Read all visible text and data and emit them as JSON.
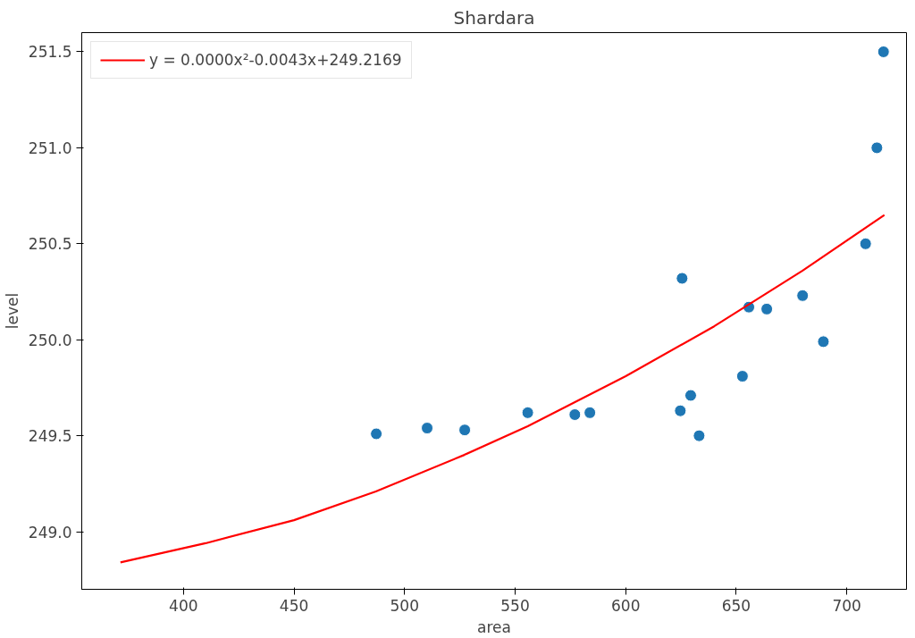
{
  "chart_data": {
    "type": "scatter",
    "title": "Shardara",
    "xlabel": "area",
    "ylabel": "level",
    "xlim": [
      354,
      727
    ],
    "ylim": [
      248.7,
      251.6
    ],
    "xticks": [
      400,
      450,
      500,
      550,
      600,
      650,
      700
    ],
    "yticks": [
      {
        "value": 249.0,
        "label": "249.0"
      },
      {
        "value": 249.5,
        "label": "249.5"
      },
      {
        "value": 250.0,
        "label": "250.0"
      },
      {
        "value": 250.5,
        "label": "250.5"
      },
      {
        "value": 251.0,
        "label": "251.0"
      },
      {
        "value": 251.5,
        "label": "251.5"
      }
    ],
    "grid": false,
    "legend": "top left",
    "marker": "circle",
    "series": [
      {
        "color": "#1f77b4",
        "x": [
          487.2,
          510.2,
          527.2,
          555.7,
          577.0,
          583.8,
          624.7,
          625.5,
          629.4,
          633.2,
          652.8,
          655.7,
          663.8,
          680.0,
          689.4,
          708.5,
          713.6,
          716.6
        ],
        "values": [
          249.51,
          249.54,
          249.53,
          249.62,
          249.61,
          249.62,
          249.63,
          250.32,
          249.71,
          249.5,
          249.81,
          250.17,
          250.16,
          250.23,
          249.99,
          250.5,
          251.0,
          251.5
        ]
      },
      {
        "type": "line",
        "name": "y = 0.0000x²-0.0043x+249.2169",
        "color": "#ff0000",
        "line_style": "solid",
        "marker": "none",
        "x": [
          371.5,
          410,
          450,
          487,
          527,
          555.7,
          600,
          640,
          680,
          717
        ],
        "values": [
          248.84,
          248.94,
          249.06,
          249.21,
          249.4,
          249.55,
          249.81,
          250.07,
          250.36,
          250.65
        ]
      }
    ]
  }
}
